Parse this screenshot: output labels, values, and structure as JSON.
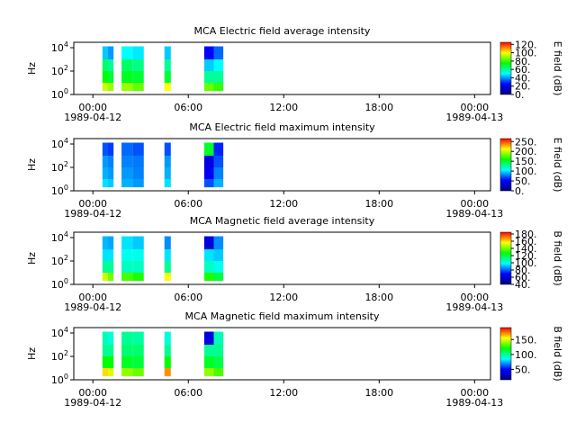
{
  "chart_data": [
    {
      "type": "spectrogram",
      "title": "MCA  Electric field average intensity",
      "ylabel": "Hz",
      "ylog": true,
      "ylim": [
        1,
        29000
      ],
      "yticks": [
        {
          "value": 1,
          "label": "10^0"
        },
        {
          "value": 100,
          "label": "10^2"
        },
        {
          "value": 10000,
          "label": "10^4"
        }
      ],
      "xlim": [
        -1.2,
        25.0
      ],
      "xticks": [
        {
          "value": 0,
          "label": "00:00"
        },
        {
          "value": 6,
          "label": "06:00"
        },
        {
          "value": 12,
          "label": "12:00"
        },
        {
          "value": 18,
          "label": "18:00"
        },
        {
          "value": 24,
          "label": "00:00"
        }
      ],
      "x_sublabels": [
        {
          "value": 0,
          "label": "1989-04-12"
        },
        {
          "value": 24,
          "label": "1989-04-13"
        }
      ],
      "time_bins": [
        0.6,
        0.95,
        1.3,
        1.8,
        2.5,
        3.2,
        4.5,
        4.9,
        7.0,
        7.6,
        8.2
      ],
      "freq_bins": [
        2,
        10,
        100,
        1000,
        13000
      ],
      "z": [
        [
          95,
          75,
          65,
          45
        ],
        [
          90,
          70,
          60,
          40
        ],
        null,
        [
          90,
          72,
          65,
          50
        ],
        [
          85,
          70,
          62,
          48
        ],
        null,
        [
          100,
          70,
          60,
          45
        ],
        null,
        [
          85,
          60,
          45,
          25
        ],
        [
          80,
          60,
          50,
          35
        ]
      ],
      "zlim": [
        0,
        125
      ],
      "zticks": [
        {
          "value": 0,
          "label": "0."
        },
        {
          "value": 20,
          "label": "20."
        },
        {
          "value": 40,
          "label": "40."
        },
        {
          "value": 60,
          "label": "60."
        },
        {
          "value": 80,
          "label": "80."
        },
        {
          "value": 100,
          "label": "100."
        },
        {
          "value": 120,
          "label": "120."
        }
      ],
      "zlabel": "E field (dB)",
      "colormap": [
        "#000080",
        "#0000ff",
        "#00ffff",
        "#00ff00",
        "#ffff00",
        "#ff0000"
      ]
    },
    {
      "type": "spectrogram",
      "title": "MCA  Electric field maximum intensity",
      "ylabel": "Hz",
      "ylog": true,
      "ylim": [
        1,
        29000
      ],
      "yticks": [
        {
          "value": 1,
          "label": "10^0"
        },
        {
          "value": 100,
          "label": "10^2"
        },
        {
          "value": 10000,
          "label": "10^4"
        }
      ],
      "xlim": [
        -1.2,
        25.0
      ],
      "xticks": [
        {
          "value": 0,
          "label": "00:00"
        },
        {
          "value": 6,
          "label": "06:00"
        },
        {
          "value": 12,
          "label": "12:00"
        },
        {
          "value": 18,
          "label": "18:00"
        },
        {
          "value": 24,
          "label": "00:00"
        }
      ],
      "x_sublabels": [
        {
          "value": 0,
          "label": "1989-04-12"
        },
        {
          "value": 24,
          "label": "1989-04-13"
        }
      ],
      "time_bins": [
        0.6,
        0.95,
        1.3,
        1.8,
        2.5,
        3.2,
        4.5,
        4.9,
        7.0,
        7.6,
        8.2
      ],
      "freq_bins": [
        2,
        10,
        100,
        1000,
        13000
      ],
      "z": [
        [
          100,
          90,
          85,
          70
        ],
        [
          95,
          85,
          80,
          65
        ],
        null,
        [
          90,
          85,
          80,
          75
        ],
        [
          85,
          80,
          78,
          70
        ],
        null,
        [
          100,
          90,
          85,
          70
        ],
        null,
        [
          70,
          50,
          40,
          150
        ],
        [
          90,
          80,
          70,
          60
        ]
      ],
      "zlim": [
        0,
        265
      ],
      "zticks": [
        {
          "value": 0,
          "label": "0."
        },
        {
          "value": 50,
          "label": "50."
        },
        {
          "value": 100,
          "label": "100."
        },
        {
          "value": 150,
          "label": "150."
        },
        {
          "value": 200,
          "label": "200."
        },
        {
          "value": 250,
          "label": "250."
        }
      ],
      "zlabel": "E field (dB)",
      "colormap": [
        "#000080",
        "#0000ff",
        "#00ffff",
        "#00ff00",
        "#ffff00",
        "#ff0000"
      ]
    },
    {
      "type": "spectrogram",
      "title": "MCA  Magnetic field average intensity",
      "ylabel": "Hz",
      "ylog": true,
      "ylim": [
        1,
        29000
      ],
      "yticks": [
        {
          "value": 1,
          "label": "10^0"
        },
        {
          "value": 100,
          "label": "10^2"
        },
        {
          "value": 10000,
          "label": "10^4"
        }
      ],
      "xlim": [
        -1.2,
        25.0
      ],
      "xticks": [
        {
          "value": 0,
          "label": "00:00"
        },
        {
          "value": 6,
          "label": "06:00"
        },
        {
          "value": 12,
          "label": "12:00"
        },
        {
          "value": 18,
          "label": "18:00"
        },
        {
          "value": 24,
          "label": "00:00"
        }
      ],
      "x_sublabels": [
        {
          "value": 0,
          "label": "1989-04-12"
        },
        {
          "value": 24,
          "label": "1989-04-13"
        }
      ],
      "time_bins": [
        0.6,
        0.95,
        1.3,
        1.8,
        2.5,
        3.2,
        4.5,
        4.9,
        7.0,
        7.6,
        8.2
      ],
      "freq_bins": [
        2,
        10,
        100,
        1000,
        13000
      ],
      "z": [
        [
          150,
          110,
          95,
          90
        ],
        [
          140,
          110,
          95,
          88
        ],
        null,
        [
          135,
          105,
          100,
          95
        ],
        [
          130,
          105,
          100,
          92
        ],
        null,
        [
          155,
          110,
          95,
          85
        ],
        null,
        [
          130,
          105,
          95,
          60
        ],
        [
          120,
          100,
          92,
          85
        ]
      ],
      "zlim": [
        40,
        185
      ],
      "zticks": [
        {
          "value": 40,
          "label": "40."
        },
        {
          "value": 60,
          "label": "60."
        },
        {
          "value": 80,
          "label": "80."
        },
        {
          "value": 100,
          "label": "100."
        },
        {
          "value": 120,
          "label": "120."
        },
        {
          "value": 140,
          "label": "140."
        },
        {
          "value": 160,
          "label": "160."
        },
        {
          "value": 180,
          "label": "180."
        }
      ],
      "zlabel": "B field (dB)",
      "colormap": [
        "#000080",
        "#0000ff",
        "#00ffff",
        "#00ff00",
        "#ffff00",
        "#ff0000"
      ]
    },
    {
      "type": "spectrogram",
      "title": "MCA  Magnetic field maximum intensity",
      "ylabel": "Hz",
      "ylog": true,
      "ylim": [
        1,
        29000
      ],
      "yticks": [
        {
          "value": 1,
          "label": "10^0"
        },
        {
          "value": 100,
          "label": "10^2"
        },
        {
          "value": 10000,
          "label": "10^4"
        }
      ],
      "xlim": [
        -1.2,
        25.0
      ],
      "xticks": [
        {
          "value": 0,
          "label": "00:00"
        },
        {
          "value": 6,
          "label": "06:00"
        },
        {
          "value": 12,
          "label": "12:00"
        },
        {
          "value": 18,
          "label": "18:00"
        },
        {
          "value": 24,
          "label": "00:00"
        }
      ],
      "x_sublabels": [
        {
          "value": 0,
          "label": "1989-04-12"
        },
        {
          "value": 24,
          "label": "1989-04-13"
        }
      ],
      "time_bins": [
        0.6,
        0.95,
        1.3,
        1.8,
        2.5,
        3.2,
        4.5,
        4.9,
        7.0,
        7.6,
        8.2
      ],
      "freq_bins": [
        2,
        10,
        100,
        1000,
        13000
      ],
      "z": [
        [
          160,
          120,
          100,
          95
        ],
        [
          150,
          120,
          100,
          90
        ],
        null,
        [
          140,
          115,
          105,
          100
        ],
        [
          135,
          112,
          105,
          98
        ],
        null,
        [
          170,
          120,
          100,
          90
        ],
        null,
        [
          140,
          115,
          100,
          40
        ],
        [
          130,
          110,
          100,
          95
        ]
      ],
      "zlim": [
        15,
        190
      ],
      "zticks": [
        {
          "value": 50,
          "label": "50."
        },
        {
          "value": 100,
          "label": "100."
        },
        {
          "value": 150,
          "label": "150."
        }
      ],
      "zlabel": "B field (dB)",
      "colormap": [
        "#000080",
        "#0000ff",
        "#00ffff",
        "#00ff00",
        "#ffff00",
        "#ff0000"
      ]
    }
  ]
}
